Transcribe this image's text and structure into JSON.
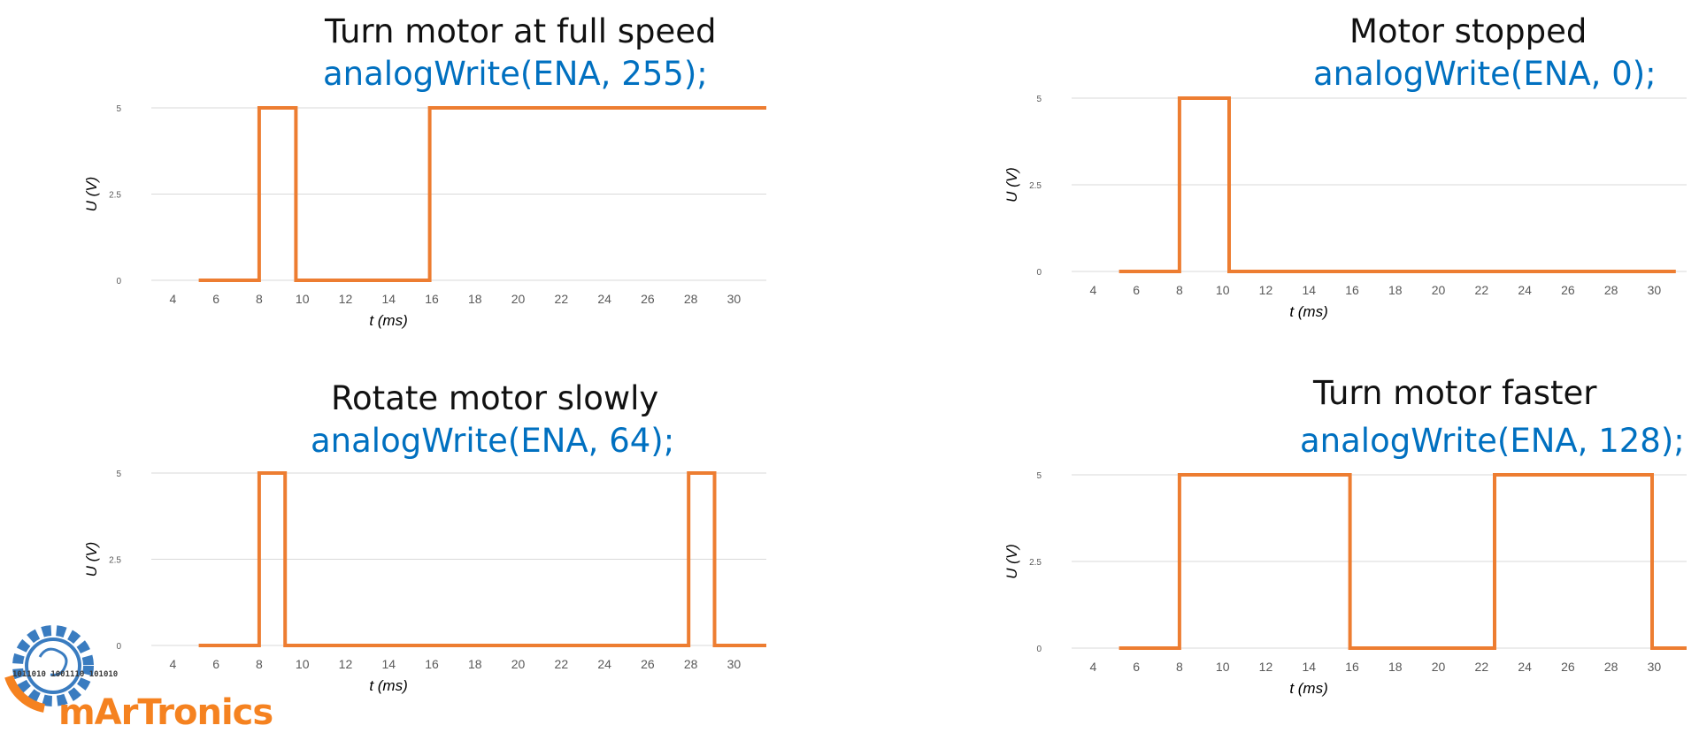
{
  "colors": {
    "signal": "#ED7D31",
    "code": "#0070C0",
    "grid": "#d9d9d9",
    "tick": "#595959",
    "logo_orange": "#f58220",
    "logo_blue": "#3a7cc0"
  },
  "logo": {
    "text": "mArTronics",
    "glyph_text": "1011010 1001110 101010"
  },
  "chart_data": [
    {
      "type": "line",
      "step": true,
      "title": "Turn motor at full speed",
      "code": "analogWrite(ENA, 255);",
      "xlabel": "t (ms)",
      "ylabel": "U (V)",
      "xticks": [
        "4",
        "6",
        "8",
        "10",
        "12",
        "14",
        "16",
        "18",
        "20",
        "22",
        "24",
        "26",
        "28",
        "30"
      ],
      "yticks": [
        "0",
        "2.5",
        "5"
      ],
      "xlim": [
        3,
        31.5
      ],
      "ylim": [
        0,
        5
      ],
      "x": [
        5.2,
        8,
        8,
        9.7,
        9.7,
        15.9,
        15.9,
        31.5
      ],
      "y": [
        0,
        0,
        5,
        5,
        0,
        0,
        5,
        5
      ]
    },
    {
      "type": "line",
      "step": true,
      "title": "Motor stopped",
      "code": "analogWrite(ENA, 0);",
      "xlabel": "t (ms)",
      "ylabel": "U (V)",
      "xticks": [
        "4",
        "6",
        "8",
        "10",
        "12",
        "14",
        "16",
        "18",
        "20",
        "22",
        "24",
        "26",
        "28",
        "30"
      ],
      "yticks": [
        "0",
        "2.5",
        "5"
      ],
      "xlim": [
        3,
        31.5
      ],
      "ylim": [
        0,
        5
      ],
      "x": [
        5.2,
        8,
        8,
        10.3,
        10.3,
        31
      ],
      "y": [
        0,
        0,
        5,
        5,
        0,
        0
      ]
    },
    {
      "type": "line",
      "step": true,
      "title": "Rotate motor slowly",
      "code": "analogWrite(ENA, 64);",
      "xlabel": "t (ms)",
      "ylabel": "U (V)",
      "xticks": [
        "4",
        "6",
        "8",
        "10",
        "12",
        "14",
        "16",
        "18",
        "20",
        "22",
        "24",
        "26",
        "28",
        "30"
      ],
      "yticks": [
        "0",
        "2.5",
        "5"
      ],
      "xlim": [
        3,
        31.5
      ],
      "ylim": [
        0,
        5
      ],
      "x": [
        5.2,
        8,
        8,
        9.2,
        9.2,
        27.9,
        27.9,
        29.1,
        29.1,
        31.5
      ],
      "y": [
        0,
        0,
        5,
        5,
        0,
        0,
        5,
        5,
        0,
        0
      ]
    },
    {
      "type": "line",
      "step": true,
      "title": "Turn motor faster",
      "code": "analogWrite(ENA, 128);",
      "xlabel": "t (ms)",
      "ylabel": "U (V)",
      "xticks": [
        "4",
        "6",
        "8",
        "10",
        "12",
        "14",
        "16",
        "18",
        "20",
        "22",
        "24",
        "26",
        "28",
        "30"
      ],
      "yticks": [
        "0",
        "2.5",
        "5"
      ],
      "xlim": [
        3,
        31.5
      ],
      "ylim": [
        0,
        5
      ],
      "x": [
        5.2,
        8,
        8,
        15.9,
        15.9,
        22.6,
        22.6,
        29.9,
        29.9,
        31.5
      ],
      "y": [
        0,
        0,
        5,
        5,
        0,
        0,
        5,
        5,
        0,
        0
      ]
    }
  ]
}
